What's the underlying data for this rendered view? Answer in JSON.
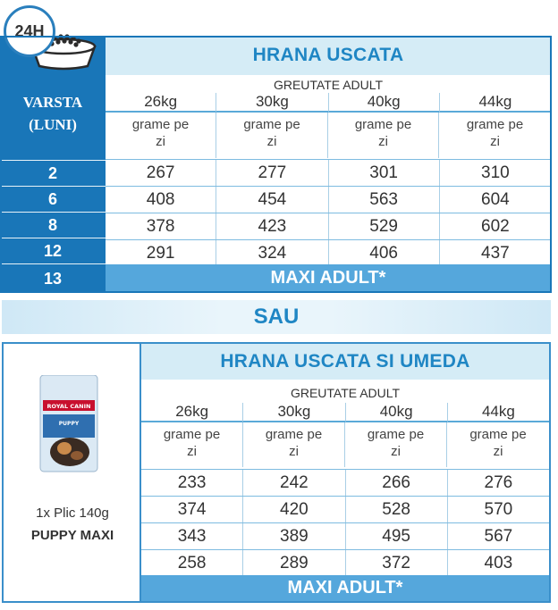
{
  "top": {
    "clock_label": "24H",
    "age_header": [
      "VARSTA",
      "(LUNI)"
    ],
    "title": "HRANA USCATA",
    "subtitle": "GREUTATE ADULT",
    "weights": [
      "26kg",
      "30kg",
      "40kg",
      "44kg"
    ],
    "unit_line1": "grame pe",
    "unit_line2": "zi",
    "ages": [
      "2",
      "6",
      "8",
      "12",
      "13"
    ],
    "rows": [
      [
        "267",
        "277",
        "301",
        "310"
      ],
      [
        "408",
        "454",
        "563",
        "604"
      ],
      [
        "378",
        "423",
        "529",
        "602"
      ],
      [
        "291",
        "324",
        "406",
        "437"
      ]
    ],
    "footer": "MAXI ADULT*"
  },
  "divider": {
    "label": "SAU"
  },
  "bottom": {
    "title": "HRANA USCATA SI UMEDA",
    "subtitle": "GREUTATE ADULT",
    "weights": [
      "26kg",
      "30kg",
      "40kg",
      "44kg"
    ],
    "unit_line1": "grame pe",
    "unit_line2": "zi",
    "product_line1": "1x Plic 140g",
    "product_line2": "PUPPY MAXI",
    "pouch_brand": "ROYAL CANIN",
    "pouch_label": "PUPPY",
    "rows": [
      [
        "233",
        "242",
        "266",
        "276"
      ],
      [
        "374",
        "420",
        "528",
        "570"
      ],
      [
        "343",
        "389",
        "495",
        "567"
      ],
      [
        "258",
        "289",
        "372",
        "403"
      ]
    ],
    "footer": "MAXI ADULT*"
  },
  "colors": {
    "primary_blue": "#1976b8",
    "light_blue": "#d5ecf6",
    "accent_bar": "#55a7dc",
    "title_blue": "#1f86c4"
  }
}
